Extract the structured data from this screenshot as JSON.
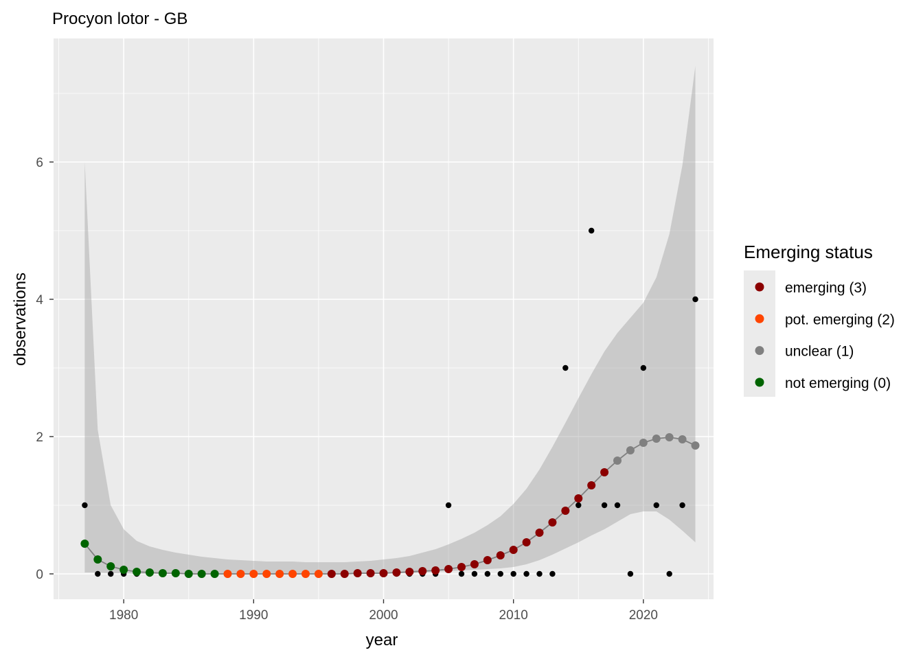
{
  "chart_data": {
    "type": "scatter",
    "title": "Procyon lotor - GB",
    "xlabel": "year",
    "ylabel": "observations",
    "xlim": [
      1974.6,
      2025.4
    ],
    "ylim": [
      -0.37,
      7.8
    ],
    "x_ticks": [
      1980,
      1990,
      2000,
      2010,
      2020
    ],
    "y_ticks": [
      0,
      2,
      4,
      6
    ],
    "grid": true,
    "legend": {
      "title": "Emerging status",
      "position": "right",
      "entries": [
        {
          "label": "emerging (3)",
          "color": "#8B0000"
        },
        {
          "label": "pot. emerging (2)",
          "color": "#FF4500"
        },
        {
          "label": "unclear (1)",
          "color": "#808080"
        },
        {
          "label": "not emerging (0)",
          "color": "#006400"
        }
      ]
    },
    "observations": {
      "color": "#000000",
      "x": [
        1977,
        1978,
        1979,
        1980,
        1981,
        1982,
        1983,
        1984,
        1985,
        1986,
        1987,
        1988,
        1989,
        1990,
        1991,
        1992,
        1993,
        1994,
        1995,
        1996,
        1997,
        1998,
        1999,
        2000,
        2001,
        2002,
        2003,
        2004,
        2005,
        2006,
        2007,
        2008,
        2009,
        2010,
        2011,
        2012,
        2013,
        2014,
        2015,
        2016,
        2017,
        2018,
        2019,
        2020,
        2021,
        2022,
        2023,
        2024
      ],
      "y": [
        1,
        0,
        0,
        0,
        0,
        0,
        0,
        0,
        0,
        0,
        0,
        0,
        0,
        0,
        0,
        0,
        0,
        0,
        0,
        0,
        0,
        0,
        0,
        0,
        0,
        0,
        0,
        0,
        1,
        0,
        0,
        0,
        0,
        0,
        0,
        0,
        0,
        3,
        1,
        5,
        1,
        1,
        0,
        3,
        1,
        0,
        1,
        4
      ]
    },
    "fit": {
      "x": [
        1977,
        1978,
        1979,
        1980,
        1981,
        1982,
        1983,
        1984,
        1985,
        1986,
        1987,
        1988,
        1989,
        1990,
        1991,
        1992,
        1993,
        1994,
        1995,
        1996,
        1997,
        1998,
        1999,
        2000,
        2001,
        2002,
        2003,
        2004,
        2005,
        2006,
        2007,
        2008,
        2009,
        2010,
        2011,
        2012,
        2013,
        2014,
        2015,
        2016,
        2017,
        2018,
        2019,
        2020,
        2021,
        2022,
        2023,
        2024
      ],
      "y": [
        0.44,
        0.21,
        0.11,
        0.06,
        0.03,
        0.02,
        0.01,
        0.01,
        0.0,
        0.0,
        0.0,
        0.0,
        0.0,
        0.0,
        0.0,
        0.0,
        0.0,
        0.0,
        0.0,
        0.0,
        0.0,
        0.01,
        0.01,
        0.01,
        0.02,
        0.03,
        0.04,
        0.05,
        0.07,
        0.1,
        0.14,
        0.2,
        0.27,
        0.35,
        0.46,
        0.6,
        0.75,
        0.92,
        1.1,
        1.29,
        1.48,
        1.65,
        1.8,
        1.91,
        1.97,
        1.99,
        1.96,
        1.87
      ],
      "status": [
        "not emerging (0)",
        "not emerging (0)",
        "not emerging (0)",
        "not emerging (0)",
        "not emerging (0)",
        "not emerging (0)",
        "not emerging (0)",
        "not emerging (0)",
        "not emerging (0)",
        "not emerging (0)",
        "not emerging (0)",
        "pot. emerging (2)",
        "pot. emerging (2)",
        "pot. emerging (2)",
        "pot. emerging (2)",
        "pot. emerging (2)",
        "pot. emerging (2)",
        "pot. emerging (2)",
        "pot. emerging (2)",
        "emerging (3)",
        "emerging (3)",
        "emerging (3)",
        "emerging (3)",
        "emerging (3)",
        "emerging (3)",
        "emerging (3)",
        "emerging (3)",
        "emerging (3)",
        "emerging (3)",
        "emerging (3)",
        "emerging (3)",
        "emerging (3)",
        "emerging (3)",
        "emerging (3)",
        "emerging (3)",
        "emerging (3)",
        "emerging (3)",
        "emerging (3)",
        "emerging (3)",
        "emerging (3)",
        "emerging (3)",
        "unclear (1)",
        "unclear (1)",
        "unclear (1)",
        "unclear (1)",
        "unclear (1)",
        "unclear (1)",
        "unclear (1)"
      ],
      "lower": [
        0.02,
        0.02,
        0.01,
        0.01,
        0.0,
        0.0,
        0.0,
        0.0,
        0.0,
        0.0,
        0.0,
        0.0,
        0.0,
        0.0,
        0.0,
        0.0,
        0.0,
        0.0,
        0.0,
        0.0,
        0.0,
        0.0,
        0.0,
        0.0,
        0.01,
        0.01,
        0.02,
        0.03,
        0.04,
        0.05,
        0.06,
        0.07,
        0.08,
        0.1,
        0.14,
        0.2,
        0.28,
        0.37,
        0.46,
        0.56,
        0.65,
        0.76,
        0.87,
        0.91,
        0.91,
        0.79,
        0.63,
        0.46
      ],
      "upper": [
        6.0,
        2.1,
        1.0,
        0.65,
        0.48,
        0.4,
        0.35,
        0.31,
        0.28,
        0.25,
        0.23,
        0.21,
        0.2,
        0.19,
        0.18,
        0.18,
        0.18,
        0.17,
        0.17,
        0.17,
        0.17,
        0.18,
        0.19,
        0.21,
        0.23,
        0.26,
        0.31,
        0.36,
        0.43,
        0.51,
        0.6,
        0.71,
        0.84,
        1.02,
        1.24,
        1.52,
        1.85,
        2.2,
        2.56,
        2.91,
        3.24,
        3.51,
        3.73,
        3.95,
        4.32,
        4.95,
        5.95,
        7.4
      ]
    }
  }
}
